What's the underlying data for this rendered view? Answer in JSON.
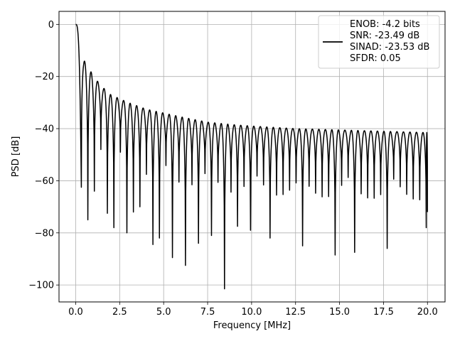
{
  "chart_data": {
    "type": "line",
    "title": "",
    "xlabel": "Frequency [MHz]",
    "ylabel": "PSD [dB]",
    "xlim": [
      -0.95,
      21.0
    ],
    "ylim": [
      -106.5,
      5.0
    ],
    "xticks": [
      0.0,
      2.5,
      5.0,
      7.5,
      10.0,
      12.5,
      15.0,
      17.5,
      20.0
    ],
    "xtick_labels": [
      "0.0",
      "2.5",
      "5.0",
      "7.5",
      "10.0",
      "12.5",
      "15.0",
      "17.5",
      "20.0"
    ],
    "yticks": [
      0,
      -20,
      -40,
      -60,
      -80,
      -100
    ],
    "ytick_labels": [
      "0",
      "−20",
      "−40",
      "−60",
      "−80",
      "−100"
    ],
    "grid": true,
    "legend_position": "top-right",
    "series": [
      {
        "name": "ENOB: -4.2 bits\nSNR: -23.49 dB\nSINAD: -23.53 dB\nSFDR: 0.05",
        "color": "#000000",
        "envelope_x": [
          0.0,
          0.1,
          0.2,
          0.45,
          0.8,
          1.2,
          1.6,
          2.0,
          2.5,
          3.0,
          4.0,
          5.0,
          6.0,
          7.5,
          9.0,
          10.0,
          12.5,
          15.0,
          17.5,
          20.0
        ],
        "envelope_y": [
          0.0,
          -0.5,
          -3.0,
          -13.5,
          -17.5,
          -21.5,
          -24.5,
          -27.0,
          -28.5,
          -30.0,
          -32.5,
          -34.0,
          -35.5,
          -37.5,
          -38.5,
          -39.0,
          -40.0,
          -40.5,
          -41.0,
          -41.5
        ],
        "null_x": [
          0.32,
          0.65,
          1.0,
          1.65,
          2.3,
          2.85,
          3.3,
          3.65,
          4.45,
          4.8,
          5.6,
          6.3,
          6.8,
          7.7,
          8.45,
          9.2,
          10.05,
          11.1,
          12.8,
          14.7,
          15.9,
          17.7,
          19.8
        ],
        "null_y": [
          -62.5,
          -75.0,
          -64.0,
          -72.5,
          -78.0,
          -80.0,
          -72.0,
          -70.0,
          -84.5,
          -82.0,
          -89.5,
          -92.5,
          -84.0,
          -81.0,
          -101.5,
          -77.5,
          -79.0,
          -82.0,
          -85.0,
          -88.5,
          -87.5,
          -86.0,
          -78.0
        ],
        "lobe_spacing": 0.37,
        "end_x": 20.0,
        "end_y": -72.0
      }
    ]
  }
}
